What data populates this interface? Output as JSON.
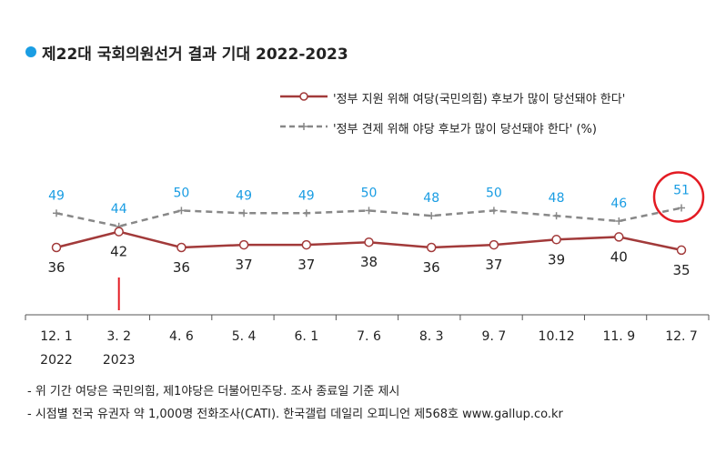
{
  "title": "제22대 국회의원선거 결과 기대 2022-2023",
  "colors": {
    "title_dot": "#1a9de3",
    "ruling": "#a23a3a",
    "opposition": "#888888",
    "opposition_label": "#1a9de3",
    "highlight_circle": "#e31b23",
    "marker_line": "#e31b23"
  },
  "chart_data": {
    "type": "line",
    "categories": [
      "12. 1",
      "3. 2",
      "4. 6",
      "5. 4",
      "6. 1",
      "7. 6",
      "8. 3",
      "9. 7",
      "10.12",
      "11. 9",
      "12. 7"
    ],
    "year_labels": [
      "2022",
      "2023"
    ],
    "series": [
      {
        "name": "'정부 지원 위해 여당(국민의힘) 후보가 많이 당선돼야 한다'",
        "values": [
          36,
          42,
          36,
          37,
          37,
          38,
          36,
          37,
          39,
          40,
          35
        ]
      },
      {
        "name": "'정부 견제 위해 야당 후보가 많이 당선돼야 한다'",
        "values": [
          49,
          44,
          50,
          49,
          49,
          50,
          48,
          50,
          48,
          46,
          51
        ]
      }
    ],
    "unit_label": "(%)",
    "highlight": {
      "series": 1,
      "index": 10
    },
    "marker": {
      "index": 1
    }
  },
  "notes": [
    "- 위 기간 여당은 국민의힘, 제1야당은 더불어민주당. 조사 종료일 기준 제시",
    "- 시점별 전국 유권자 약 1,000명 전화조사(CATI). 한국갤럽 데일리 오피니언 제568호 www.gallup.co.kr"
  ]
}
